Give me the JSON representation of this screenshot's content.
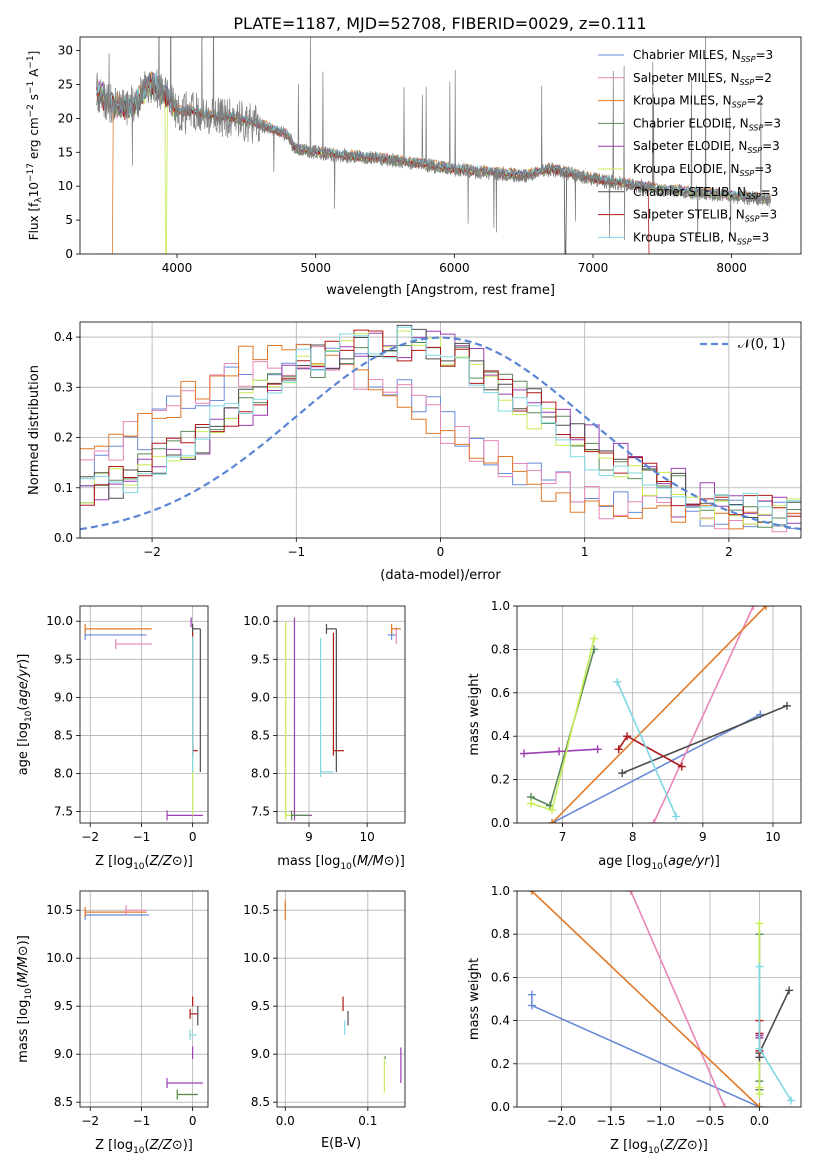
{
  "figure_title": "PLATE=1187, MJD=52708, FIBERID=0029, z=0.111",
  "colors": {
    "Chabrier MILES": "#6a8bd8",
    "Salpeter MILES": "#e986b8",
    "Kroupa MILES": "#e07a2a",
    "Chabrier ELODIE": "#5b8a5a",
    "Salpeter ELODIE": "#9b3fb2",
    "Kroupa ELODIE": "#c8ec58",
    "Chabrier STELIB": "#4d4d4d",
    "Salpeter STELIB": "#b01818",
    "Kroupa STELIB": "#7fd8e3",
    "data": "#7f7f7f",
    "gaussian": "#5b86d6"
  },
  "chart_data": [
    {
      "id": "spectrum",
      "type": "line",
      "xlabel": "wavelength [Angstrom, rest frame]",
      "ylabel": "Flux [f",
      "xlim": [
        3300,
        8500
      ],
      "ylim": [
        0,
        32
      ],
      "xticks": [
        4000,
        5000,
        6000,
        7000,
        8000
      ],
      "yticks": [
        0,
        5,
        10,
        15,
        20,
        25,
        30
      ],
      "grid": false,
      "legend_position": "top-right",
      "legend": [
        {
          "series": "Chabrier MILES",
          "label": "Chabrier MILES, N",
          "n": "3"
        },
        {
          "series": "Salpeter MILES",
          "label": "Salpeter MILES, N",
          "n": "2"
        },
        {
          "series": "Kroupa MILES",
          "label": "Kroupa MILES, N",
          "n": "2"
        },
        {
          "series": "Chabrier ELODIE",
          "label": "Chabrier ELODIE, N",
          "n": "3"
        },
        {
          "series": "Salpeter ELODIE",
          "label": "Salpeter ELODIE, N",
          "n": "3"
        },
        {
          "series": "Kroupa ELODIE",
          "label": "Kroupa ELODIE, N",
          "n": "3"
        },
        {
          "series": "Chabrier STELIB",
          "label": "Chabrier STELIB, N",
          "n": "3"
        },
        {
          "series": "Salpeter STELIB",
          "label": "Salpeter STELIB, N",
          "n": "3"
        },
        {
          "series": "Kroupa STELIB",
          "label": "Kroupa STELIB, N",
          "n": "3"
        }
      ],
      "continuum": {
        "x": [
          3420,
          3500,
          3600,
          3700,
          3800,
          3900,
          4000,
          4100,
          4200,
          4400,
          4600,
          4800,
          4850,
          5000,
          5200,
          5500,
          6000,
          6500,
          6700,
          7000,
          7500,
          8000,
          8280
        ],
        "y": [
          24,
          22.5,
          21.5,
          22,
          25,
          24,
          21,
          21,
          20.5,
          20,
          19,
          17.5,
          15.5,
          15,
          14.5,
          14,
          12.5,
          11.5,
          12.5,
          11,
          9.5,
          8.5,
          8
        ]
      }
    },
    {
      "id": "residuals",
      "type": "histogram",
      "xlabel": "(data-model)/error",
      "ylabel": "Normed distribution",
      "xlim": [
        -2.5,
        2.5
      ],
      "ylim": [
        0,
        0.43
      ],
      "xticks": [
        -2,
        -1,
        0,
        1,
        2
      ],
      "yticks": [
        0.0,
        0.1,
        0.2,
        0.3,
        0.4
      ],
      "grid": true,
      "legend_position": "top-right",
      "gaussian_label": "𝒩(0, 1)",
      "bin_width": 0.1,
      "series": [
        {
          "name": "Chabrier MILES",
          "center": -0.95,
          "sigma": 0.98,
          "peak": 0.32
        },
        {
          "name": "Salpeter MILES",
          "center": -1.0,
          "sigma": 1.0,
          "peak": 0.31
        },
        {
          "name": "Kroupa MILES",
          "center": -1.05,
          "sigma": 0.95,
          "peak": 0.33
        },
        {
          "name": "Chabrier ELODIE",
          "center": -0.35,
          "sigma": 1.05,
          "peak": 0.35
        },
        {
          "name": "Salpeter ELODIE",
          "center": -0.3,
          "sigma": 1.08,
          "peak": 0.35
        },
        {
          "name": "Kroupa ELODIE",
          "center": -0.4,
          "sigma": 1.02,
          "peak": 0.36
        },
        {
          "name": "Chabrier STELIB",
          "center": -0.35,
          "sigma": 1.06,
          "peak": 0.35
        },
        {
          "name": "Salpeter STELIB",
          "center": -0.38,
          "sigma": 1.05,
          "peak": 0.35
        },
        {
          "name": "Kroupa STELIB",
          "center": -0.42,
          "sigma": 1.03,
          "peak": 0.35
        }
      ]
    },
    {
      "id": "age-vs-Z",
      "type": "errorbar",
      "xlabel": "Z [log",
      "ylabel": "age  [log",
      "xlim": [
        -2.2,
        0.3
      ],
      "ylim": [
        7.35,
        10.2
      ],
      "xticks": [
        -2,
        -1,
        0
      ],
      "yticks": [
        7.5,
        8.0,
        8.5,
        9.0,
        9.5,
        10.0
      ],
      "grid": true,
      "segments": [
        {
          "series": "Chabrier MILES",
          "x1": -2.1,
          "y1": 9.82,
          "x2": -0.9,
          "y2": 9.82
        },
        {
          "series": "Kroupa MILES",
          "x1": -2.1,
          "y1": 9.9,
          "x2": -0.8,
          "y2": 9.9
        },
        {
          "series": "Salpeter MILES",
          "x1": -1.5,
          "y1": 9.7,
          "x2": -0.8,
          "y2": 9.7
        },
        {
          "series": "Salpeter ELODIE",
          "x1": -0.5,
          "y1": 7.45,
          "x2": 0.2,
          "y2": 7.45
        },
        {
          "series": "Kroupa ELODIE",
          "x1": 0.0,
          "y1": 7.45,
          "x2": 0.0,
          "y2": 9.9
        },
        {
          "series": "Chabrier STELIB",
          "x1": 0.0,
          "y1": 9.9,
          "x2": 0.15,
          "y2": 9.9
        },
        {
          "series": "Chabrier STELIB",
          "x1": 0.15,
          "y1": 8.02,
          "x2": 0.15,
          "y2": 9.9
        },
        {
          "series": "Salpeter STELIB",
          "x1": 0.0,
          "y1": 8.3,
          "x2": 0.1,
          "y2": 8.3
        },
        {
          "series": "Salpeter STELIB",
          "x1": 0.0,
          "y1": 8.3,
          "x2": 0.0,
          "y2": 9.85
        },
        {
          "series": "Kroupa STELIB",
          "x1": 0.0,
          "y1": 8.02,
          "x2": 0.0,
          "y2": 9.8
        },
        {
          "series": "Salpeter ELODIE",
          "x1": -0.03,
          "y1": 9.92,
          "x2": -0.03,
          "y2": 10.05
        }
      ]
    },
    {
      "id": "age-vs-mass",
      "type": "errorbar",
      "xlabel": "mass [log",
      "ylabel": "",
      "xlim": [
        8.45,
        10.65
      ],
      "ylim": [
        7.35,
        10.2
      ],
      "xticks": [
        9,
        10
      ],
      "yticks": [
        7.5,
        8.0,
        8.5,
        9.0,
        9.5,
        10.0
      ],
      "grid": true,
      "segments": [
        {
          "series": "Kroupa ELODIE",
          "x1": 8.6,
          "y1": 7.45,
          "x2": 8.6,
          "y2": 10.0
        },
        {
          "series": "Kroupa ELODIE",
          "x1": 8.6,
          "y1": 7.45,
          "x2": 9.05,
          "y2": 7.45
        },
        {
          "series": "Salpeter ELODIE",
          "x1": 8.75,
          "y1": 7.45,
          "x2": 8.75,
          "y2": 10.05
        },
        {
          "series": "Salpeter ELODIE",
          "x1": 8.75,
          "y1": 7.45,
          "x2": 9.05,
          "y2": 7.45
        },
        {
          "series": "Chabrier ELODIE",
          "x1": 8.7,
          "y1": 7.45,
          "x2": 9.0,
          "y2": 7.45
        },
        {
          "series": "Kroupa STELIB",
          "x1": 9.2,
          "y1": 8.02,
          "x2": 9.2,
          "y2": 9.78
        },
        {
          "series": "Kroupa STELIB",
          "x1": 9.2,
          "y1": 8.02,
          "x2": 9.42,
          "y2": 8.02
        },
        {
          "series": "Chabrier STELIB",
          "x1": 9.3,
          "y1": 9.9,
          "x2": 9.47,
          "y2": 9.9
        },
        {
          "series": "Chabrier STELIB",
          "x1": 9.47,
          "y1": 8.02,
          "x2": 9.47,
          "y2": 9.9
        },
        {
          "series": "Salpeter STELIB",
          "x1": 9.42,
          "y1": 8.3,
          "x2": 9.42,
          "y2": 9.85
        },
        {
          "series": "Salpeter STELIB",
          "x1": 9.42,
          "y1": 8.3,
          "x2": 9.6,
          "y2": 8.3
        },
        {
          "series": "Chabrier MILES",
          "x1": 10.42,
          "y1": 9.82,
          "x2": 10.42,
          "y2": 9.82
        },
        {
          "series": "Salpeter MILES",
          "x1": 10.5,
          "y1": 9.7,
          "x2": 10.5,
          "y2": 9.92
        },
        {
          "series": "Kroupa MILES",
          "x1": 10.42,
          "y1": 9.9,
          "x2": 10.58,
          "y2": 9.9
        }
      ]
    },
    {
      "id": "weight-vs-age",
      "type": "line",
      "xlabel": "age  [log",
      "ylabel": "mass weight",
      "xlim": [
        6.35,
        10.4
      ],
      "ylim": [
        0.0,
        1.0
      ],
      "xticks": [
        7,
        8,
        9,
        10
      ],
      "yticks": [
        0.0,
        0.2,
        0.4,
        0.6,
        0.8,
        1.0
      ],
      "grid": true,
      "series": [
        {
          "name": "Chabrier MILES",
          "x": [
            6.85,
            9.82
          ],
          "y": [
            0.0,
            0.5
          ]
        },
        {
          "name": "Salpeter MILES",
          "x": [
            8.3,
            9.72
          ],
          "y": [
            0.0,
            1.0
          ]
        },
        {
          "name": "Kroupa MILES",
          "x": [
            6.85,
            9.9
          ],
          "y": [
            0.0,
            1.0
          ]
        },
        {
          "name": "Chabrier ELODIE",
          "x": [
            6.55,
            6.82,
            7.45
          ],
          "y": [
            0.12,
            0.08,
            0.8
          ]
        },
        {
          "name": "Salpeter ELODIE",
          "x": [
            6.45,
            6.95,
            7.5
          ],
          "y": [
            0.32,
            0.33,
            0.34
          ]
        },
        {
          "name": "Kroupa ELODIE",
          "x": [
            6.55,
            6.85,
            7.45
          ],
          "y": [
            0.09,
            0.06,
            0.85
          ]
        },
        {
          "name": "Chabrier STELIB",
          "x": [
            7.85,
            10.2
          ],
          "y": [
            0.23,
            0.54
          ]
        },
        {
          "name": "Salpeter STELIB",
          "x": [
            7.8,
            7.92,
            8.7
          ],
          "y": [
            0.34,
            0.4,
            0.26
          ]
        },
        {
          "name": "Kroupa STELIB",
          "x": [
            7.78,
            8.62
          ],
          "y": [
            0.65,
            0.03
          ]
        }
      ]
    },
    {
      "id": "mass-vs-Z",
      "type": "errorbar",
      "xlabel": "Z [log",
      "ylabel": "mass [log",
      "xlim": [
        -2.2,
        0.3
      ],
      "ylim": [
        8.45,
        10.7
      ],
      "xticks": [
        -2,
        -1,
        0
      ],
      "yticks": [
        8.5,
        9.0,
        9.5,
        10.0,
        10.5
      ],
      "grid": true,
      "segments": [
        {
          "series": "Chabrier MILES",
          "x1": -2.1,
          "y1": 10.45,
          "x2": -0.85,
          "y2": 10.45
        },
        {
          "series": "Kroupa MILES",
          "x1": -2.1,
          "y1": 10.48,
          "x2": -0.9,
          "y2": 10.48
        },
        {
          "series": "Salpeter MILES",
          "x1": -1.3,
          "y1": 10.5,
          "x2": -0.9,
          "y2": 10.5
        },
        {
          "series": "Salpeter ELODIE",
          "x1": -0.5,
          "y1": 8.7,
          "x2": 0.2,
          "y2": 8.7
        },
        {
          "series": "Kroupa ELODIE",
          "x1": -0.3,
          "y1": 8.58,
          "x2": 0.1,
          "y2": 8.58
        },
        {
          "series": "Chabrier ELODIE",
          "x1": -0.3,
          "y1": 8.58,
          "x2": 0.1,
          "y2": 8.58
        },
        {
          "series": "Salpeter STELIB",
          "x1": -0.05,
          "y1": 9.42,
          "x2": 0.1,
          "y2": 9.42
        },
        {
          "series": "Chabrier STELIB",
          "x1": 0.1,
          "y1": 9.3,
          "x2": 0.1,
          "y2": 9.5
        },
        {
          "series": "Kroupa STELIB",
          "x1": -0.05,
          "y1": 9.2,
          "x2": 0.08,
          "y2": 9.2
        },
        {
          "series": "Salpeter ELODIE",
          "x1": 0.0,
          "y1": 8.95,
          "x2": 0.0,
          "y2": 9.08
        },
        {
          "series": "Salpeter STELIB",
          "x1": 0.0,
          "y1": 9.5,
          "x2": 0.0,
          "y2": 9.6
        }
      ]
    },
    {
      "id": "mass-vs-ebv",
      "type": "errorbar",
      "xlabel": "E(B-V)",
      "ylabel": "",
      "xlim": [
        -0.01,
        0.145
      ],
      "ylim": [
        8.45,
        10.7
      ],
      "xticks": [
        0.0,
        0.1
      ],
      "yticks": [
        8.5,
        9.0,
        9.5,
        10.0,
        10.5
      ],
      "grid": true,
      "segments": [
        {
          "series": "Kroupa MILES",
          "x1": 0.0,
          "y1": 10.4,
          "x2": 0.0,
          "y2": 10.6
        },
        {
          "series": "Salpeter STELIB",
          "x1": 0.07,
          "y1": 9.45,
          "x2": 0.07,
          "y2": 9.6
        },
        {
          "series": "Kroupa STELIB",
          "x1": 0.072,
          "y1": 9.2,
          "x2": 0.072,
          "y2": 9.35
        },
        {
          "series": "Chabrier STELIB",
          "x1": 0.076,
          "y1": 9.3,
          "x2": 0.076,
          "y2": 9.45
        },
        {
          "series": "Kroupa ELODIE",
          "x1": 0.12,
          "y1": 8.6,
          "x2": 0.12,
          "y2": 8.95
        },
        {
          "series": "Chabrier ELODIE",
          "x1": 0.121,
          "y1": 8.95,
          "x2": 0.121,
          "y2": 8.98
        },
        {
          "series": "Salpeter ELODIE",
          "x1": 0.14,
          "y1": 8.7,
          "x2": 0.14,
          "y2": 9.07
        }
      ]
    },
    {
      "id": "weight-vs-Z",
      "type": "line",
      "xlabel": "Z [log",
      "ylabel": "mass weight",
      "xlim": [
        -2.45,
        0.42
      ],
      "ylim": [
        0.0,
        1.0
      ],
      "xticks": [
        -2.0,
        -1.5,
        -1.0,
        -0.5,
        0.0
      ],
      "yticks": [
        0.0,
        0.2,
        0.4,
        0.6,
        0.8,
        1.0
      ],
      "grid": true,
      "series": [
        {
          "name": "Chabrier MILES",
          "x": [
            -2.3,
            -2.3,
            0.0
          ],
          "y": [
            0.52,
            0.47,
            0.0
          ]
        },
        {
          "name": "Salpeter MILES",
          "x": [
            -1.3,
            -0.35
          ],
          "y": [
            1.0,
            0.0
          ]
        },
        {
          "name": "Kroupa MILES",
          "x": [
            -2.3,
            0.0
          ],
          "y": [
            1.0,
            0.0
          ]
        },
        {
          "name": "Chabrier ELODIE",
          "x": [
            0.0,
            0.0,
            0.0
          ],
          "y": [
            0.12,
            0.08,
            0.8
          ]
        },
        {
          "name": "Salpeter ELODIE",
          "x": [
            0.0,
            0.0,
            0.0
          ],
          "y": [
            0.32,
            0.33,
            0.34
          ]
        },
        {
          "name": "Kroupa ELODIE",
          "x": [
            0.0,
            0.0,
            0.0
          ],
          "y": [
            0.06,
            0.09,
            0.85
          ]
        },
        {
          "name": "Chabrier STELIB",
          "x": [
            0.0,
            0.0,
            0.3
          ],
          "y": [
            0.23,
            0.25,
            0.54
          ]
        },
        {
          "name": "Salpeter STELIB",
          "x": [
            0.0,
            0.0,
            0.0
          ],
          "y": [
            0.26,
            0.34,
            0.4
          ]
        },
        {
          "name": "Kroupa STELIB",
          "x": [
            0.0,
            0.0,
            0.32
          ],
          "y": [
            0.65,
            0.27,
            0.03
          ]
        }
      ]
    }
  ]
}
